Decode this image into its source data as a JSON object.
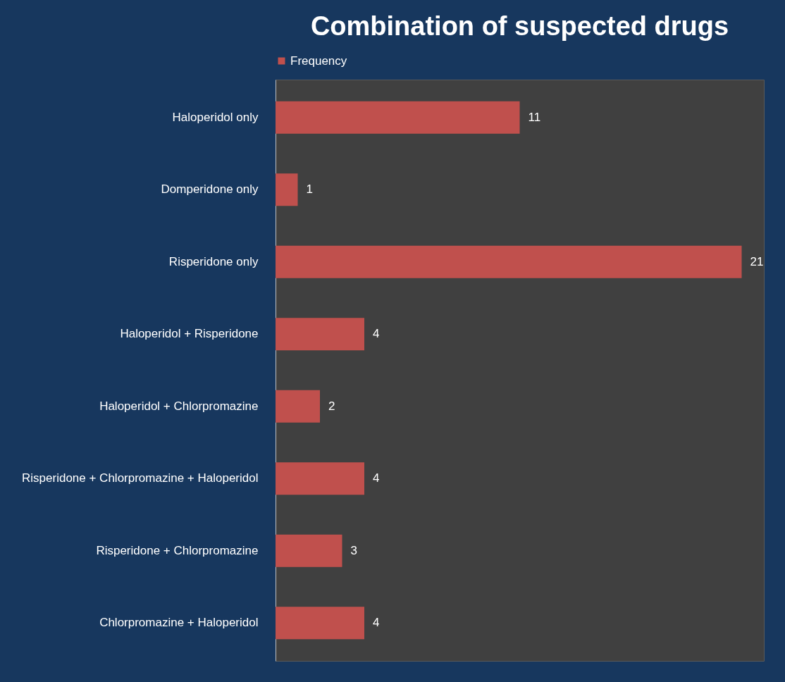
{
  "chart_data": {
    "type": "bar",
    "orientation": "horizontal",
    "title": "Combination of suspected drugs",
    "categories": [
      "Haloperidol only",
      "Domperidone  only",
      "Risperidone only",
      "Haloperidol + Risperidone",
      "Haloperidol + Chlorpromazine",
      "Risperidone + Chlorpromazine + Haloperidol",
      "Risperidone + Chlorpromazine",
      "Chlorpromazine + Haloperidol"
    ],
    "series": [
      {
        "name": "Frequency",
        "color": "#c0504d",
        "values": [
          11,
          1,
          21,
          4,
          2,
          4,
          3,
          4
        ]
      }
    ],
    "data_labels": true,
    "legend": "top",
    "grid": false
  }
}
